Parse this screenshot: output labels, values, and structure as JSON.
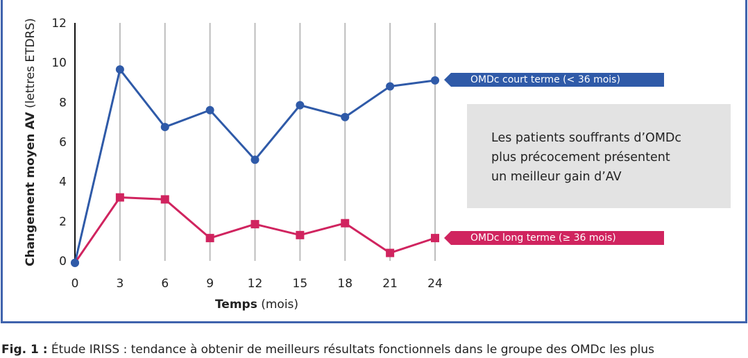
{
  "chart_data": {
    "type": "line",
    "xlabel_bold": "Temps",
    "xlabel_rest": "(mois)",
    "ylabel_bold": "Changement moyen AV",
    "ylabel_rest": "(lettres  ETDRS)",
    "x": [
      0,
      3,
      6,
      9,
      12,
      15,
      18,
      21,
      24
    ],
    "x_tick_labels": [
      "0",
      "3",
      "6",
      "9",
      "12",
      "15",
      "18",
      "21",
      "24"
    ],
    "y_ticks": [
      0,
      2,
      4,
      6,
      8,
      10,
      12
    ],
    "y_tick_labels": [
      "0",
      "2",
      "4",
      "6",
      "8",
      "10",
      "12"
    ],
    "xlim": [
      0,
      24
    ],
    "ylim": [
      0,
      12
    ],
    "grid": "vertical",
    "series": [
      {
        "name": "OMDc court terme (< 36 mois)",
        "color": "#2f5aa8",
        "marker": "circle",
        "values": [
          -0.1,
          9.65,
          6.75,
          7.6,
          5.1,
          7.85,
          7.25,
          8.8,
          9.1
        ]
      },
      {
        "name": "OMDc long terme (≥ 36 mois)",
        "color": "#d0245f",
        "marker": "square",
        "values": [
          -0.1,
          3.2,
          3.1,
          1.15,
          1.85,
          1.3,
          1.9,
          0.4,
          1.15
        ]
      }
    ],
    "annotation": "Les patients souffrants d’OMDc\nplus précocement présentent\nun meilleur gain d’AV"
  },
  "caption": {
    "label": "Fig. 1 :",
    "text": " Étude IRISS : tendance à obtenir de meilleurs résultats fonctionnels dans le groupe des OMDc les plus"
  }
}
